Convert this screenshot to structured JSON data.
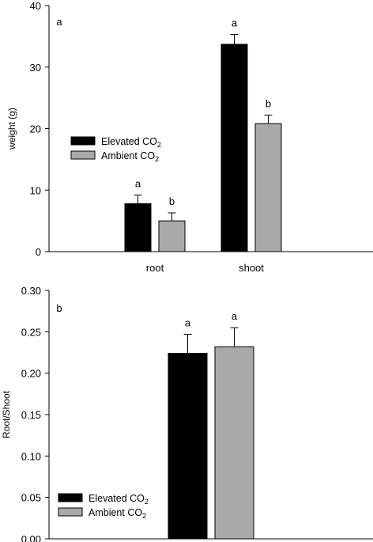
{
  "chart_data": [
    {
      "type": "bar",
      "panel_label": "a",
      "ylabel": "weight (g)",
      "ylim": [
        0,
        40
      ],
      "yticks": [
        "0",
        "10",
        "20",
        "30",
        "40"
      ],
      "categories": [
        "root",
        "shoot"
      ],
      "series": [
        {
          "name": "Elevated CO2",
          "color": "#000000",
          "values": [
            7.8,
            33.7
          ],
          "errors": [
            1.4,
            1.6
          ]
        },
        {
          "name": "Ambient CO2",
          "color": "#a9a9a9",
          "values": [
            5.0,
            20.8
          ],
          "errors": [
            1.3,
            1.4
          ]
        }
      ],
      "significance": [
        [
          "a",
          "b"
        ],
        [
          "a",
          "b"
        ]
      ],
      "legend_position": "center-left",
      "grid": false
    },
    {
      "type": "bar",
      "panel_label": "b",
      "ylabel": "Root/Shoot",
      "ylim": [
        0,
        0.3
      ],
      "yticks": [
        "0.00",
        "0.05",
        "0.10",
        "0.15",
        "0.20",
        "0.25",
        "0.30"
      ],
      "categories": [
        ""
      ],
      "series": [
        {
          "name": "Elevated CO2",
          "color": "#000000",
          "values": [
            0.224
          ],
          "errors": [
            0.023
          ]
        },
        {
          "name": "Ambient CO2",
          "color": "#a9a9a9",
          "values": [
            0.232
          ],
          "errors": [
            0.023
          ]
        }
      ],
      "significance": [
        [
          "a",
          "a"
        ]
      ],
      "legend_position": "bottom-left",
      "grid": false
    }
  ]
}
